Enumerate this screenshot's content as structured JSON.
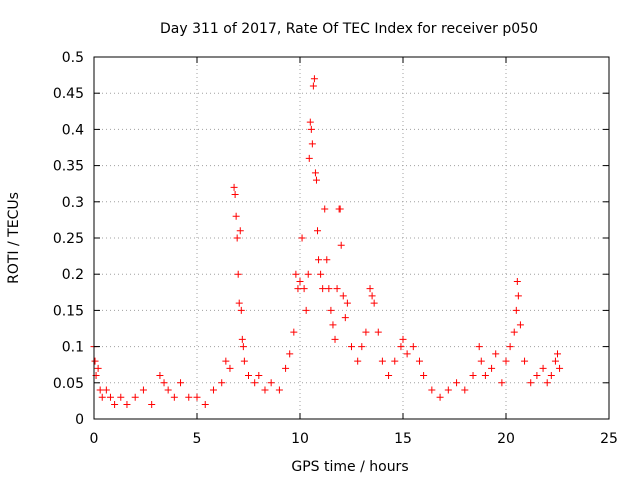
{
  "chart_data": {
    "type": "scatter",
    "title": "Day 311 of 2017, Rate Of TEC Index for receiver p050",
    "xlabel": "GPS time / hours",
    "ylabel": "ROTI / TECUs",
    "xlim": [
      0,
      25
    ],
    "ylim": [
      0,
      0.5
    ],
    "x_ticks": [
      "0",
      "5",
      "10",
      "15",
      "20",
      "25"
    ],
    "y_ticks": [
      "0",
      "0.05",
      "0.1",
      "0.15",
      "0.2",
      "0.25",
      "0.3",
      "0.35",
      "0.4",
      "0.45",
      "0.5"
    ],
    "grid": true,
    "marker": "+",
    "marker_color": "#ff0000",
    "series": [
      {
        "points": [
          [
            0.0,
            0.1
          ],
          [
            0.05,
            0.08
          ],
          [
            0.1,
            0.06
          ],
          [
            0.2,
            0.07
          ],
          [
            0.3,
            0.04
          ],
          [
            0.4,
            0.03
          ],
          [
            0.6,
            0.04
          ],
          [
            0.8,
            0.03
          ],
          [
            1.0,
            0.02
          ],
          [
            1.3,
            0.03
          ],
          [
            1.6,
            0.02
          ],
          [
            2.0,
            0.03
          ],
          [
            2.4,
            0.04
          ],
          [
            2.8,
            0.02
          ],
          [
            3.2,
            0.06
          ],
          [
            3.4,
            0.05
          ],
          [
            3.6,
            0.04
          ],
          [
            3.9,
            0.03
          ],
          [
            4.2,
            0.05
          ],
          [
            4.6,
            0.03
          ],
          [
            5.0,
            0.03
          ],
          [
            5.4,
            0.02
          ],
          [
            5.8,
            0.04
          ],
          [
            6.2,
            0.05
          ],
          [
            6.4,
            0.08
          ],
          [
            6.6,
            0.07
          ],
          [
            6.8,
            0.32
          ],
          [
            6.85,
            0.31
          ],
          [
            6.9,
            0.28
          ],
          [
            6.95,
            0.25
          ],
          [
            7.0,
            0.2
          ],
          [
            7.05,
            0.16
          ],
          [
            7.1,
            0.26
          ],
          [
            7.15,
            0.15
          ],
          [
            7.2,
            0.11
          ],
          [
            7.25,
            0.1
          ],
          [
            7.3,
            0.08
          ],
          [
            7.5,
            0.06
          ],
          [
            7.8,
            0.05
          ],
          [
            8.0,
            0.06
          ],
          [
            8.3,
            0.04
          ],
          [
            8.6,
            0.05
          ],
          [
            9.0,
            0.04
          ],
          [
            9.3,
            0.07
          ],
          [
            9.5,
            0.09
          ],
          [
            9.7,
            0.12
          ],
          [
            9.8,
            0.2
          ],
          [
            9.9,
            0.18
          ],
          [
            10.0,
            0.19
          ],
          [
            10.1,
            0.25
          ],
          [
            10.2,
            0.18
          ],
          [
            10.3,
            0.15
          ],
          [
            10.4,
            0.2
          ],
          [
            10.45,
            0.36
          ],
          [
            10.5,
            0.41
          ],
          [
            10.55,
            0.4
          ],
          [
            10.6,
            0.38
          ],
          [
            10.65,
            0.46
          ],
          [
            10.7,
            0.47
          ],
          [
            10.75,
            0.34
          ],
          [
            10.8,
            0.33
          ],
          [
            10.85,
            0.26
          ],
          [
            10.9,
            0.22
          ],
          [
            11.0,
            0.2
          ],
          [
            11.1,
            0.18
          ],
          [
            11.2,
            0.29
          ],
          [
            11.3,
            0.22
          ],
          [
            11.4,
            0.18
          ],
          [
            11.5,
            0.15
          ],
          [
            11.6,
            0.13
          ],
          [
            11.7,
            0.11
          ],
          [
            11.8,
            0.18
          ],
          [
            11.9,
            0.29
          ],
          [
            11.95,
            0.29
          ],
          [
            12.0,
            0.24
          ],
          [
            12.1,
            0.17
          ],
          [
            12.2,
            0.14
          ],
          [
            12.3,
            0.16
          ],
          [
            12.5,
            0.1
          ],
          [
            12.8,
            0.08
          ],
          [
            13.0,
            0.1
          ],
          [
            13.2,
            0.12
          ],
          [
            13.4,
            0.18
          ],
          [
            13.5,
            0.17
          ],
          [
            13.6,
            0.16
          ],
          [
            13.8,
            0.12
          ],
          [
            14.0,
            0.08
          ],
          [
            14.3,
            0.06
          ],
          [
            14.6,
            0.08
          ],
          [
            14.9,
            0.1
          ],
          [
            15.0,
            0.11
          ],
          [
            15.2,
            0.09
          ],
          [
            15.5,
            0.1
          ],
          [
            15.8,
            0.08
          ],
          [
            16.0,
            0.06
          ],
          [
            16.4,
            0.04
          ],
          [
            16.8,
            0.03
          ],
          [
            17.2,
            0.04
          ],
          [
            17.6,
            0.05
          ],
          [
            18.0,
            0.04
          ],
          [
            18.4,
            0.06
          ],
          [
            18.7,
            0.1
          ],
          [
            18.8,
            0.08
          ],
          [
            19.0,
            0.06
          ],
          [
            19.3,
            0.07
          ],
          [
            19.5,
            0.09
          ],
          [
            19.8,
            0.05
          ],
          [
            20.0,
            0.08
          ],
          [
            20.2,
            0.1
          ],
          [
            20.4,
            0.12
          ],
          [
            20.5,
            0.15
          ],
          [
            20.55,
            0.19
          ],
          [
            20.6,
            0.17
          ],
          [
            20.7,
            0.13
          ],
          [
            20.9,
            0.08
          ],
          [
            21.2,
            0.05
          ],
          [
            21.5,
            0.06
          ],
          [
            21.8,
            0.07
          ],
          [
            22.0,
            0.05
          ],
          [
            22.2,
            0.06
          ],
          [
            22.4,
            0.08
          ],
          [
            22.5,
            0.09
          ],
          [
            22.6,
            0.07
          ]
        ]
      }
    ]
  }
}
